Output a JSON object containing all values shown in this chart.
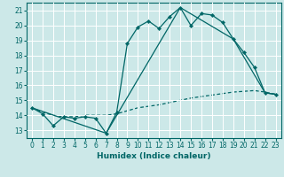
{
  "xlabel": "Humidex (Indice chaleur)",
  "bg_color": "#cce8e8",
  "grid_color": "#b8d8d8",
  "line_color": "#006666",
  "xlim": [
    -0.5,
    23.5
  ],
  "ylim": [
    12.5,
    21.5
  ],
  "xticks": [
    0,
    1,
    2,
    3,
    4,
    5,
    6,
    7,
    8,
    9,
    10,
    11,
    12,
    13,
    14,
    15,
    16,
    17,
    18,
    19,
    20,
    21,
    22,
    23
  ],
  "yticks": [
    13,
    14,
    15,
    16,
    17,
    18,
    19,
    20,
    21
  ],
  "series1_x": [
    0,
    1,
    2,
    3,
    4,
    5,
    6,
    7,
    8,
    9,
    10,
    11,
    12,
    13,
    14,
    15,
    16,
    17,
    18,
    19,
    20,
    21,
    22,
    23
  ],
  "series1_y": [
    14.5,
    14.1,
    13.3,
    13.9,
    13.8,
    13.9,
    13.8,
    12.8,
    14.2,
    18.8,
    19.9,
    20.3,
    19.8,
    20.6,
    21.2,
    20.0,
    20.8,
    20.7,
    20.2,
    19.1,
    18.2,
    17.2,
    15.5,
    15.4
  ],
  "series2_x": [
    0,
    7,
    14,
    19,
    22,
    23
  ],
  "series2_y": [
    14.5,
    12.8,
    21.2,
    19.1,
    15.5,
    15.4
  ],
  "series3_x": [
    0,
    1,
    2,
    3,
    4,
    5,
    6,
    7,
    8,
    9,
    10,
    11,
    12,
    13,
    14,
    15,
    16,
    17,
    18,
    19,
    20,
    21,
    22,
    23
  ],
  "series3_y": [
    14.5,
    14.2,
    14.0,
    13.9,
    13.9,
    14.0,
    14.0,
    14.0,
    14.1,
    14.3,
    14.5,
    14.6,
    14.7,
    14.85,
    15.0,
    15.15,
    15.25,
    15.35,
    15.45,
    15.55,
    15.6,
    15.65,
    15.55,
    15.4
  ]
}
